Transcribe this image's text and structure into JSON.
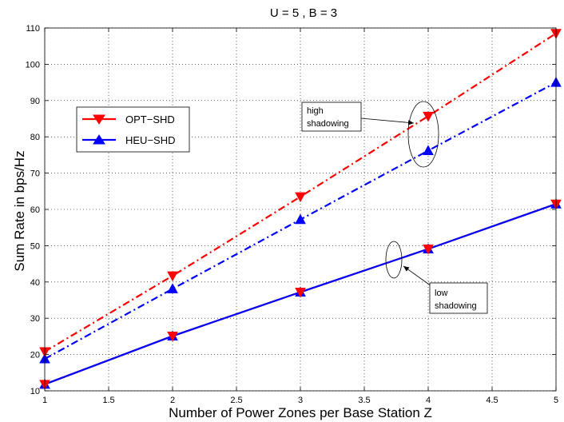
{
  "chart_data": {
    "type": "line",
    "title": "U = 5 , B = 3",
    "xlabel": "Number of Power Zones per Base Station Z",
    "ylabel": "Sum Rate in bps/Hz",
    "xlim": [
      1,
      5
    ],
    "ylim": [
      10,
      110
    ],
    "xticks": [
      "1",
      "1.5",
      "2",
      "2.5",
      "3",
      "3.5",
      "4",
      "4.5",
      "5"
    ],
    "yticks": [
      "10",
      "20",
      "30",
      "40",
      "50",
      "60",
      "70",
      "80",
      "90",
      "100",
      "110"
    ],
    "grid": true,
    "legend": {
      "position": "upper-left",
      "entries": [
        "OPT−SHD",
        "HEU−SHD"
      ]
    },
    "x": [
      1,
      2,
      3,
      4,
      5
    ],
    "series": [
      {
        "name": "OPT−SHD (high shadowing)",
        "legend": "OPT−SHD",
        "color": "#ff0000",
        "marker": "triangle-down",
        "line": "dash-dot",
        "values": [
          20.8,
          41.7,
          63.5,
          85.7,
          108.5
        ]
      },
      {
        "name": "HEU−SHD (high shadowing)",
        "legend": "HEU−SHD",
        "color": "#0000ff",
        "marker": "triangle-up",
        "line": "dash-dot",
        "values": [
          18.8,
          38.1,
          57.2,
          76.2,
          95.0
        ]
      },
      {
        "name": "OPT−SHD (low shadowing)",
        "legend": "OPT−SHD",
        "color": "#ff0000",
        "marker": "triangle-down",
        "line": "solid",
        "values": [
          11.8,
          25.1,
          37.2,
          49.1,
          61.5
        ]
      },
      {
        "name": "HEU−SHD (low shadowing)",
        "legend": "HEU−SHD",
        "color": "#0000ff",
        "marker": "triangle-up",
        "line": "solid",
        "values": [
          11.8,
          25.1,
          37.2,
          49.1,
          61.5
        ]
      }
    ],
    "annotations": [
      {
        "lines": [
          "high",
          "shadowing"
        ],
        "target": {
          "x": 4,
          "y": 81
        }
      },
      {
        "lines": [
          "low",
          "shadowing"
        ],
        "target": {
          "x": 3.8,
          "y": 46
        }
      }
    ]
  }
}
